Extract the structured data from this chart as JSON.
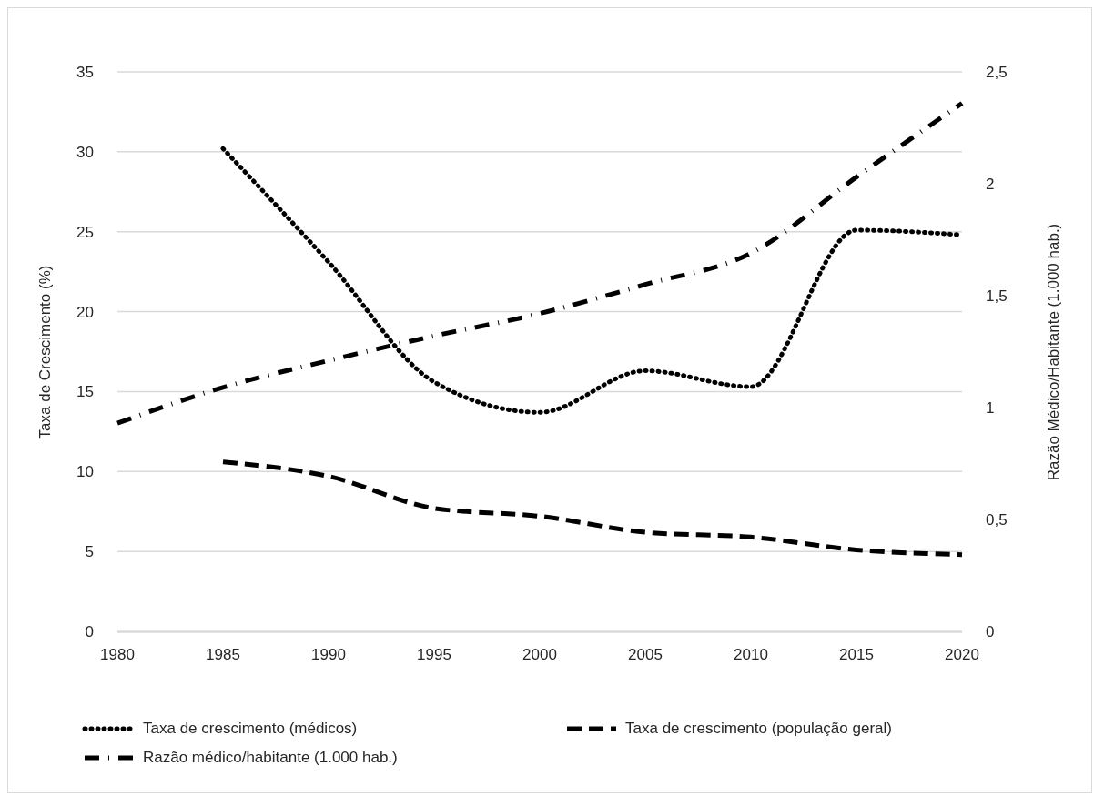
{
  "chart_data": {
    "type": "line",
    "xlabel": null,
    "ylabel": "Taxa de Crescimento (%)",
    "y2label": "Razão Médico/Habitante (1.000 hab.)",
    "categories": [
      "1980",
      "1985",
      "1990",
      "1995",
      "2000",
      "2005",
      "2010",
      "2015",
      "2020"
    ],
    "series": [
      {
        "name": "Taxa de crescimento (médicos)",
        "color": "#000000",
        "line_style": "dotted",
        "values": [
          null,
          30.2,
          23.1,
          15.6,
          13.7,
          16.3,
          15.3,
          25.1,
          24.8
        ]
      },
      {
        "name": "Taxa de crescimento (população geral)",
        "color": "#000000",
        "line_style": "dashed",
        "values": [
          null,
          10.6,
          9.7,
          7.7,
          7.2,
          6.2,
          5.9,
          5.1,
          4.8
        ]
      },
      {
        "name": "Razão médico/habitante (1.000 hab.)",
        "color": "#000000",
        "line_style": "dashdot",
        "axis": "y2",
        "values": [
          0.93,
          1.09,
          1.21,
          1.32,
          1.42,
          1.55,
          1.69,
          2.03,
          2.36
        ]
      }
    ],
    "ylim": [
      0,
      35
    ],
    "yticks": [
      0,
      5,
      10,
      15,
      20,
      25,
      30,
      35
    ],
    "y2lim": [
      0,
      2.5
    ],
    "y2ticks": [
      0,
      {
        "value": 0.5,
        "label": "0,5"
      },
      1,
      {
        "value": 1.5,
        "label": "1,5"
      },
      2,
      {
        "value": 2.5,
        "label": "2,5"
      }
    ],
    "grid": "y",
    "legend": "bottom",
    "marker": "none"
  }
}
